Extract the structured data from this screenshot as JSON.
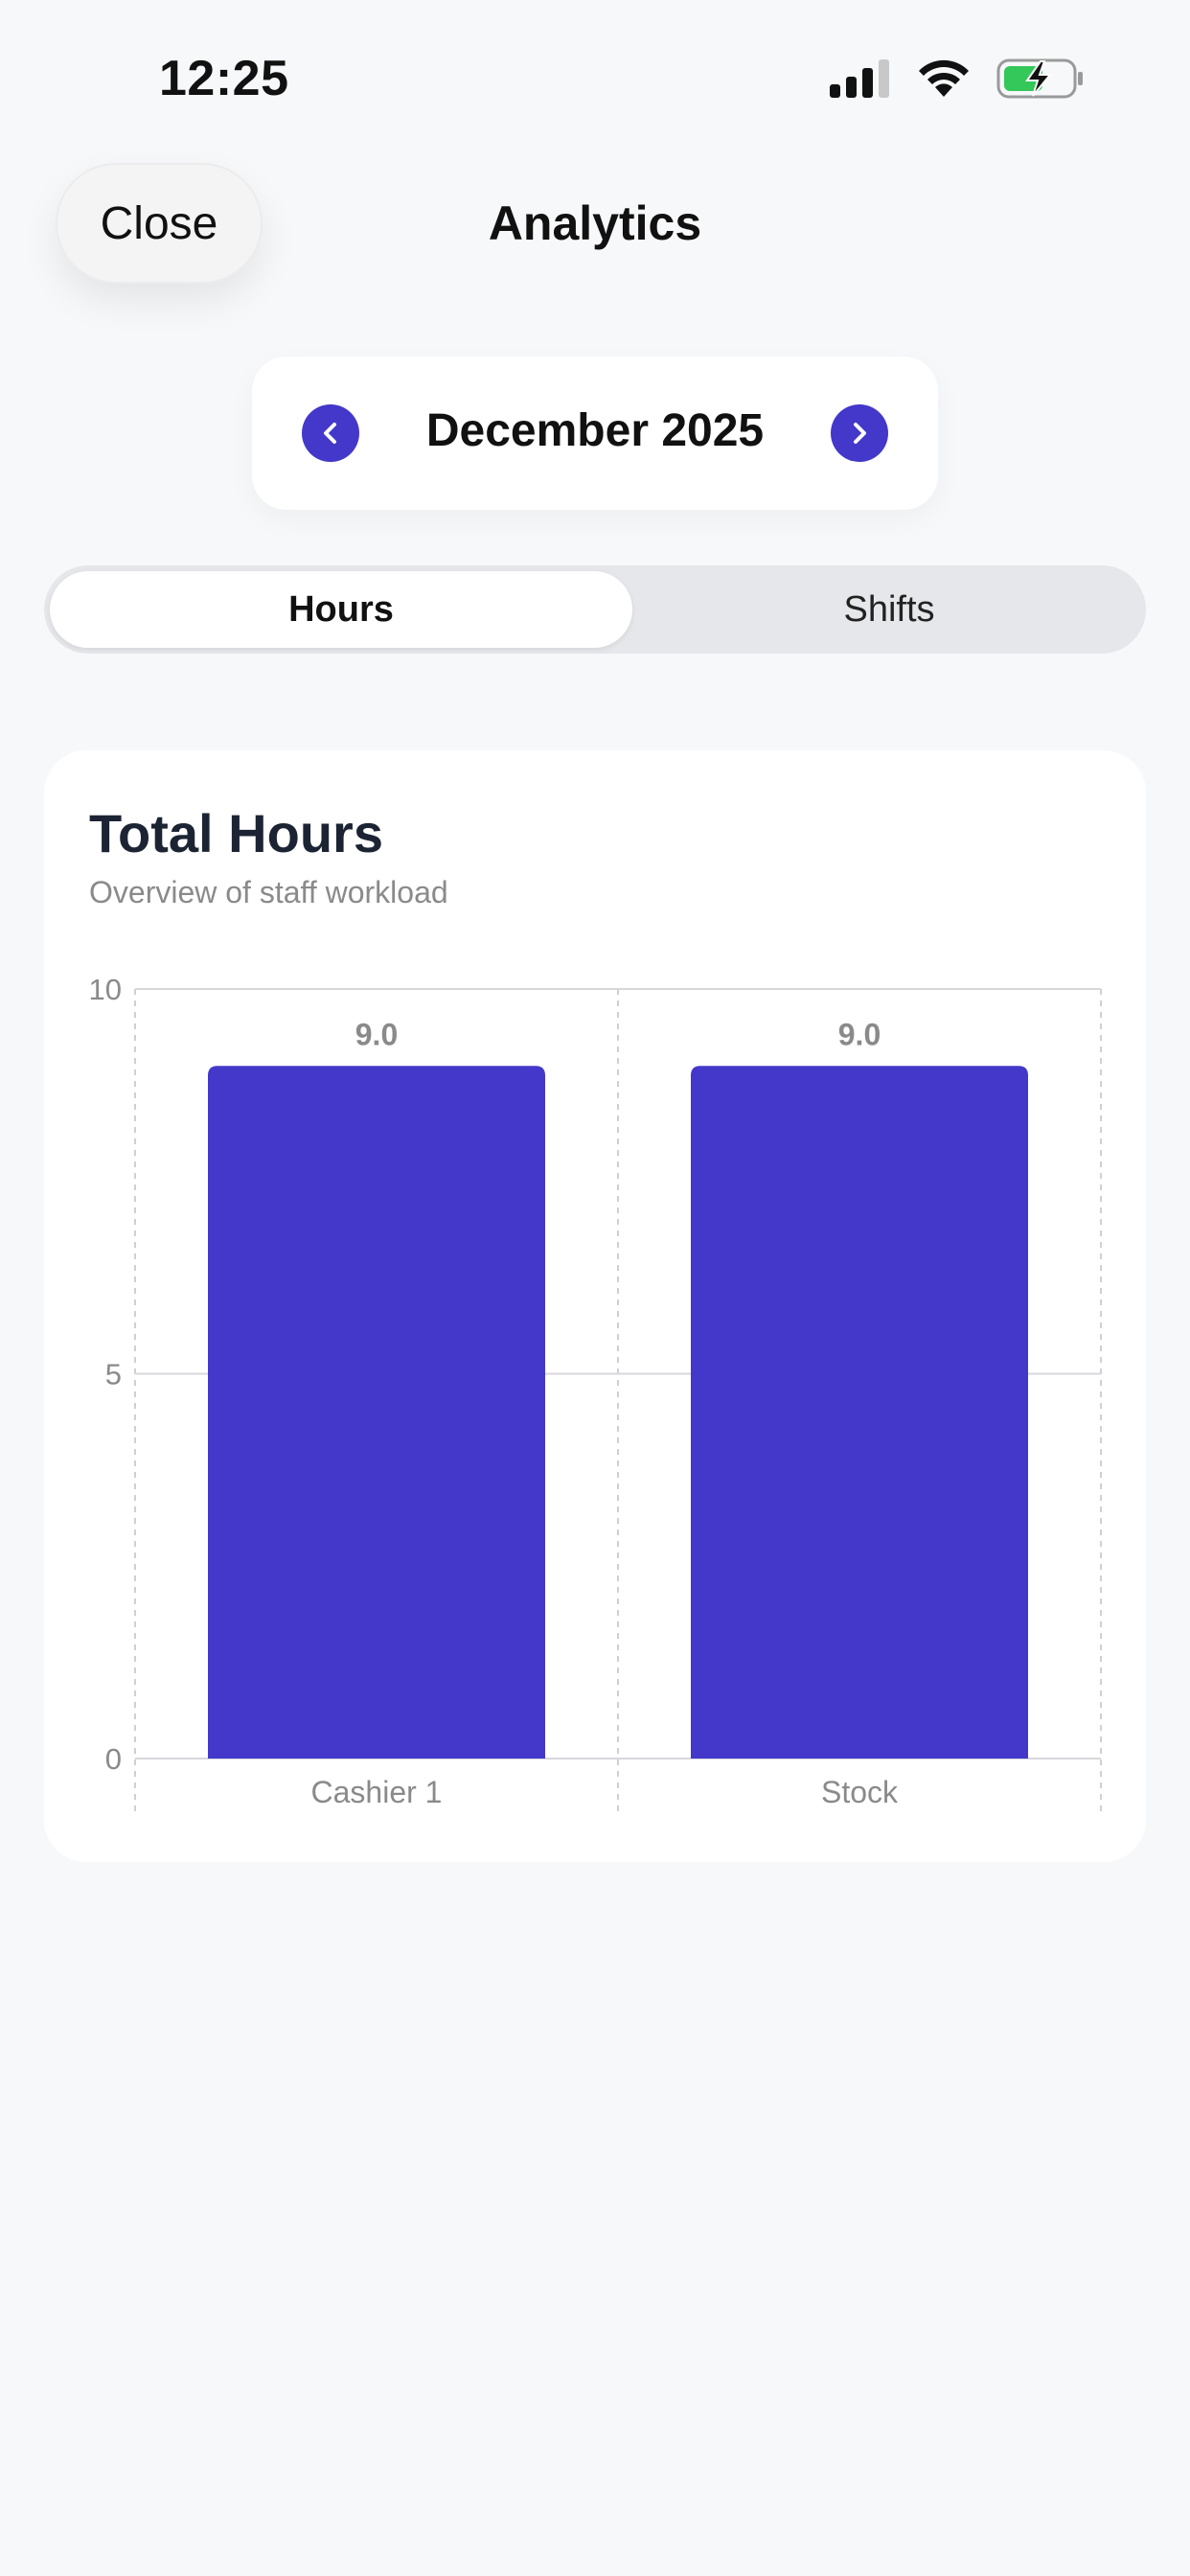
{
  "status_bar": {
    "time": "12:25",
    "icons": [
      "cellular-signal-icon",
      "wifi-icon",
      "battery-charging-icon"
    ]
  },
  "header": {
    "close_label": "Close",
    "title": "Analytics"
  },
  "month_selector": {
    "label": "December 2025",
    "prev_icon": "chevron-left-icon",
    "next_icon": "chevron-right-icon"
  },
  "segmented": {
    "tabs": [
      {
        "label": "Hours",
        "selected": true
      },
      {
        "label": "Shifts",
        "selected": false
      }
    ]
  },
  "card": {
    "title": "Total Hours",
    "subtitle": "Overview of staff workload"
  },
  "colors": {
    "accent": "#4338ca",
    "background": "#f7f8fa"
  },
  "chart_data": {
    "type": "bar",
    "categories": [
      "Cashier 1",
      "Stock"
    ],
    "values": [
      9.0,
      9.0
    ],
    "value_labels": [
      "9.0",
      "9.0"
    ],
    "ylim": [
      0,
      10
    ],
    "yticks": [
      "0",
      "5",
      "10"
    ],
    "grid": true,
    "bar_color": "#4338ca"
  }
}
